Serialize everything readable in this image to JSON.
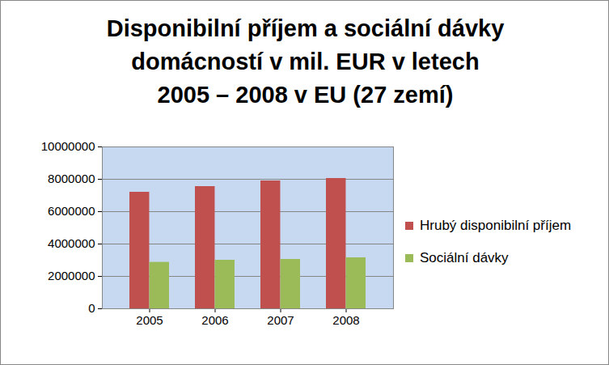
{
  "chart_data": {
    "type": "bar",
    "title": "Disponibilní příjem a sociální dávky\ndomácností v mil. EUR v letech\n2005 – 2008 v EU (27 zemí)",
    "categories": [
      "2005",
      "2006",
      "2007",
      "2008"
    ],
    "series": [
      {
        "name": "Hrubý disponibilní příjem",
        "color": "#c0504d",
        "values": [
          7200000,
          7550000,
          7900000,
          8050000
        ]
      },
      {
        "name": "Sociální dávky",
        "color": "#9bbb59",
        "values": [
          2870000,
          3000000,
          3050000,
          3150000
        ]
      }
    ],
    "ylim": [
      0,
      10000000
    ],
    "yticks": [
      0,
      2000000,
      4000000,
      6000000,
      8000000,
      10000000
    ],
    "grid": true,
    "legend": "right"
  }
}
